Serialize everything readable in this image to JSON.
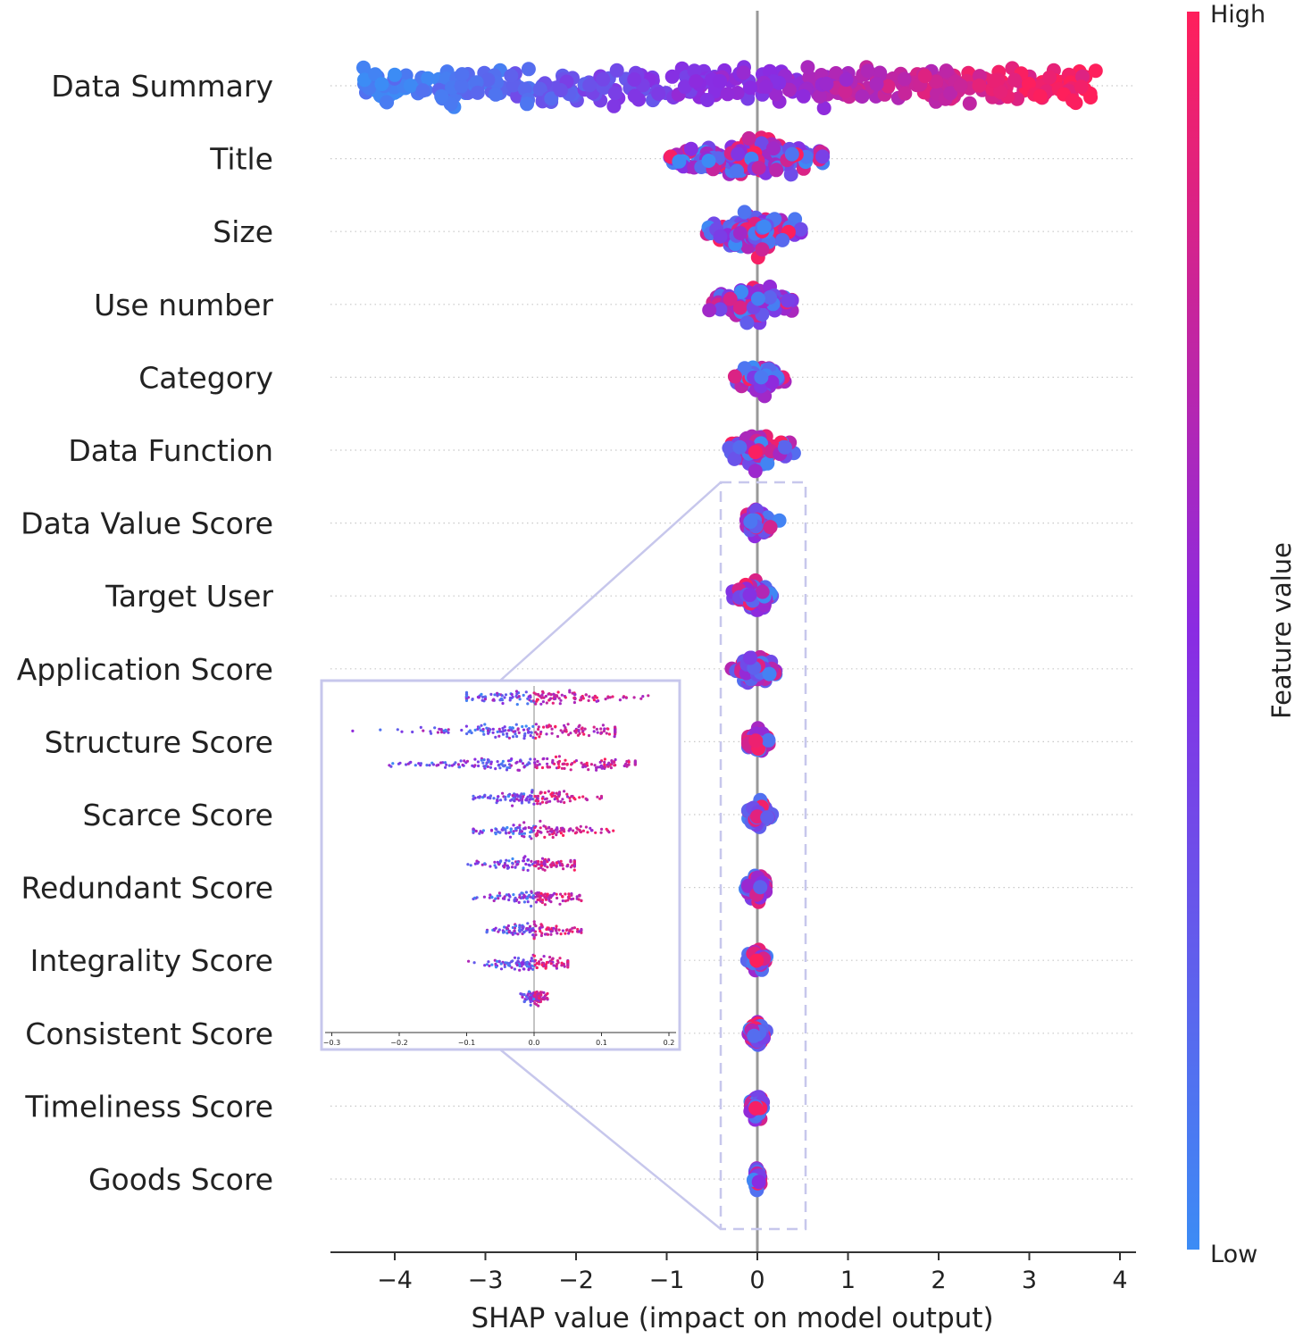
{
  "chart_data": {
    "type": "scatter",
    "subtype": "shap-beeswarm",
    "title": "",
    "xlabel": "SHAP value (impact on model output)",
    "xlim": [
      -4.75,
      4.1
    ],
    "xticks": [
      -4,
      -3,
      -2,
      -1,
      0,
      1,
      2,
      3,
      4
    ],
    "xtick_labels": [
      "−4",
      "−3",
      "−2",
      "−1",
      "0",
      "1",
      "2",
      "3",
      "4"
    ],
    "features": [
      {
        "name": "Data Summary",
        "min": -4.35,
        "max": 3.75,
        "spread": 0.9
      },
      {
        "name": "Title",
        "min": -1.2,
        "max": 0.72,
        "spread": 0.85
      },
      {
        "name": "Size",
        "min": -0.65,
        "max": 0.48,
        "spread": 0.9
      },
      {
        "name": "Use number",
        "min": -0.55,
        "max": 0.38,
        "spread": 0.85
      },
      {
        "name": "Category",
        "min": -0.28,
        "max": 0.3,
        "spread": 0.7
      },
      {
        "name": "Data Function",
        "min": -0.35,
        "max": 0.42,
        "spread": 0.75
      },
      {
        "name": "Data Value Score",
        "min": -0.12,
        "max": 0.25,
        "spread": 0.65
      },
      {
        "name": "Target User",
        "min": -0.3,
        "max": 0.16,
        "spread": 0.7
      },
      {
        "name": "Application Score",
        "min": -0.3,
        "max": 0.2,
        "spread": 0.7
      },
      {
        "name": "Structure Score",
        "min": -0.1,
        "max": 0.14,
        "spread": 0.65
      },
      {
        "name": "Scarce Score",
        "min": -0.1,
        "max": 0.16,
        "spread": 0.6
      },
      {
        "name": "Redundant Score",
        "min": -0.15,
        "max": 0.09,
        "spread": 0.55
      },
      {
        "name": "Integrality Score",
        "min": -0.12,
        "max": 0.1,
        "spread": 0.55
      },
      {
        "name": "Consistent Score",
        "min": -0.1,
        "max": 0.1,
        "spread": 0.55
      },
      {
        "name": "Timeliness Score",
        "min": -0.12,
        "max": 0.06,
        "spread": 0.55
      },
      {
        "name": "Goods Score",
        "min": -0.04,
        "max": 0.04,
        "spread": 0.55
      }
    ],
    "colorbar": {
      "label": "Feature value",
      "high_label": "High",
      "low_label": "Low",
      "low_color": "#3c8cf5",
      "mid_color": "#8a2be2",
      "high_color": "#ff1f5b"
    },
    "inset": {
      "xlim": [
        -0.3,
        0.2
      ],
      "xticks": [
        -0.3,
        -0.2,
        -0.1,
        0.0,
        0.1,
        0.2
      ],
      "xtick_labels": [
        "−0.3",
        "−0.2",
        "−0.1",
        "0.0",
        "0.1",
        "0.2"
      ],
      "zoomed_feature_range": [
        "Data Value Score",
        "Goods Score"
      ],
      "frame_color": "#c7c7ec"
    }
  }
}
